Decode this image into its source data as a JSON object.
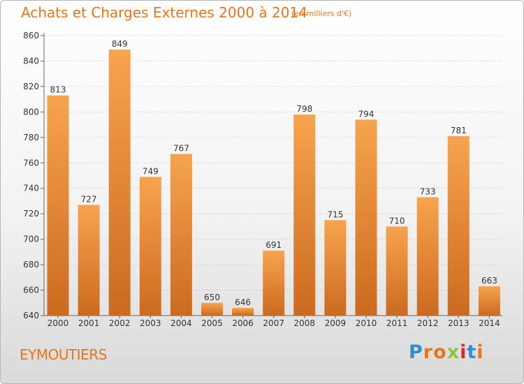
{
  "title": "Achats et Charges Externes 2000 à 2014",
  "subtitle": "(en milliers d'€)",
  "place": "EYMOUTIERS",
  "brand": {
    "letters": [
      "P",
      "r",
      "o",
      "x",
      "i",
      "t",
      "i"
    ],
    "letter_colors": [
      "#2e8ed1",
      "#e8751a",
      "#e8751a",
      "#8cc63f",
      "#e3262b",
      "#2e8ed1",
      "#e8751a"
    ]
  },
  "colors": {
    "bar_light": "#f7a44e",
    "bar_dark": "#cc6a1f",
    "accent": "#e8751a"
  },
  "chart_data": {
    "type": "bar",
    "categories": [
      "2000",
      "2001",
      "2002",
      "2003",
      "2004",
      "2005",
      "2006",
      "2007",
      "2008",
      "2009",
      "2010",
      "2011",
      "2012",
      "2013",
      "2014"
    ],
    "values": [
      813,
      727,
      849,
      749,
      767,
      650,
      646,
      691,
      798,
      715,
      794,
      710,
      733,
      781,
      663
    ],
    "ylim": [
      640,
      860
    ],
    "yticks": [
      640,
      660,
      680,
      700,
      720,
      740,
      760,
      780,
      800,
      820,
      840,
      860
    ],
    "grid": "horizontal dotted",
    "xlabel": "",
    "ylabel": ""
  }
}
